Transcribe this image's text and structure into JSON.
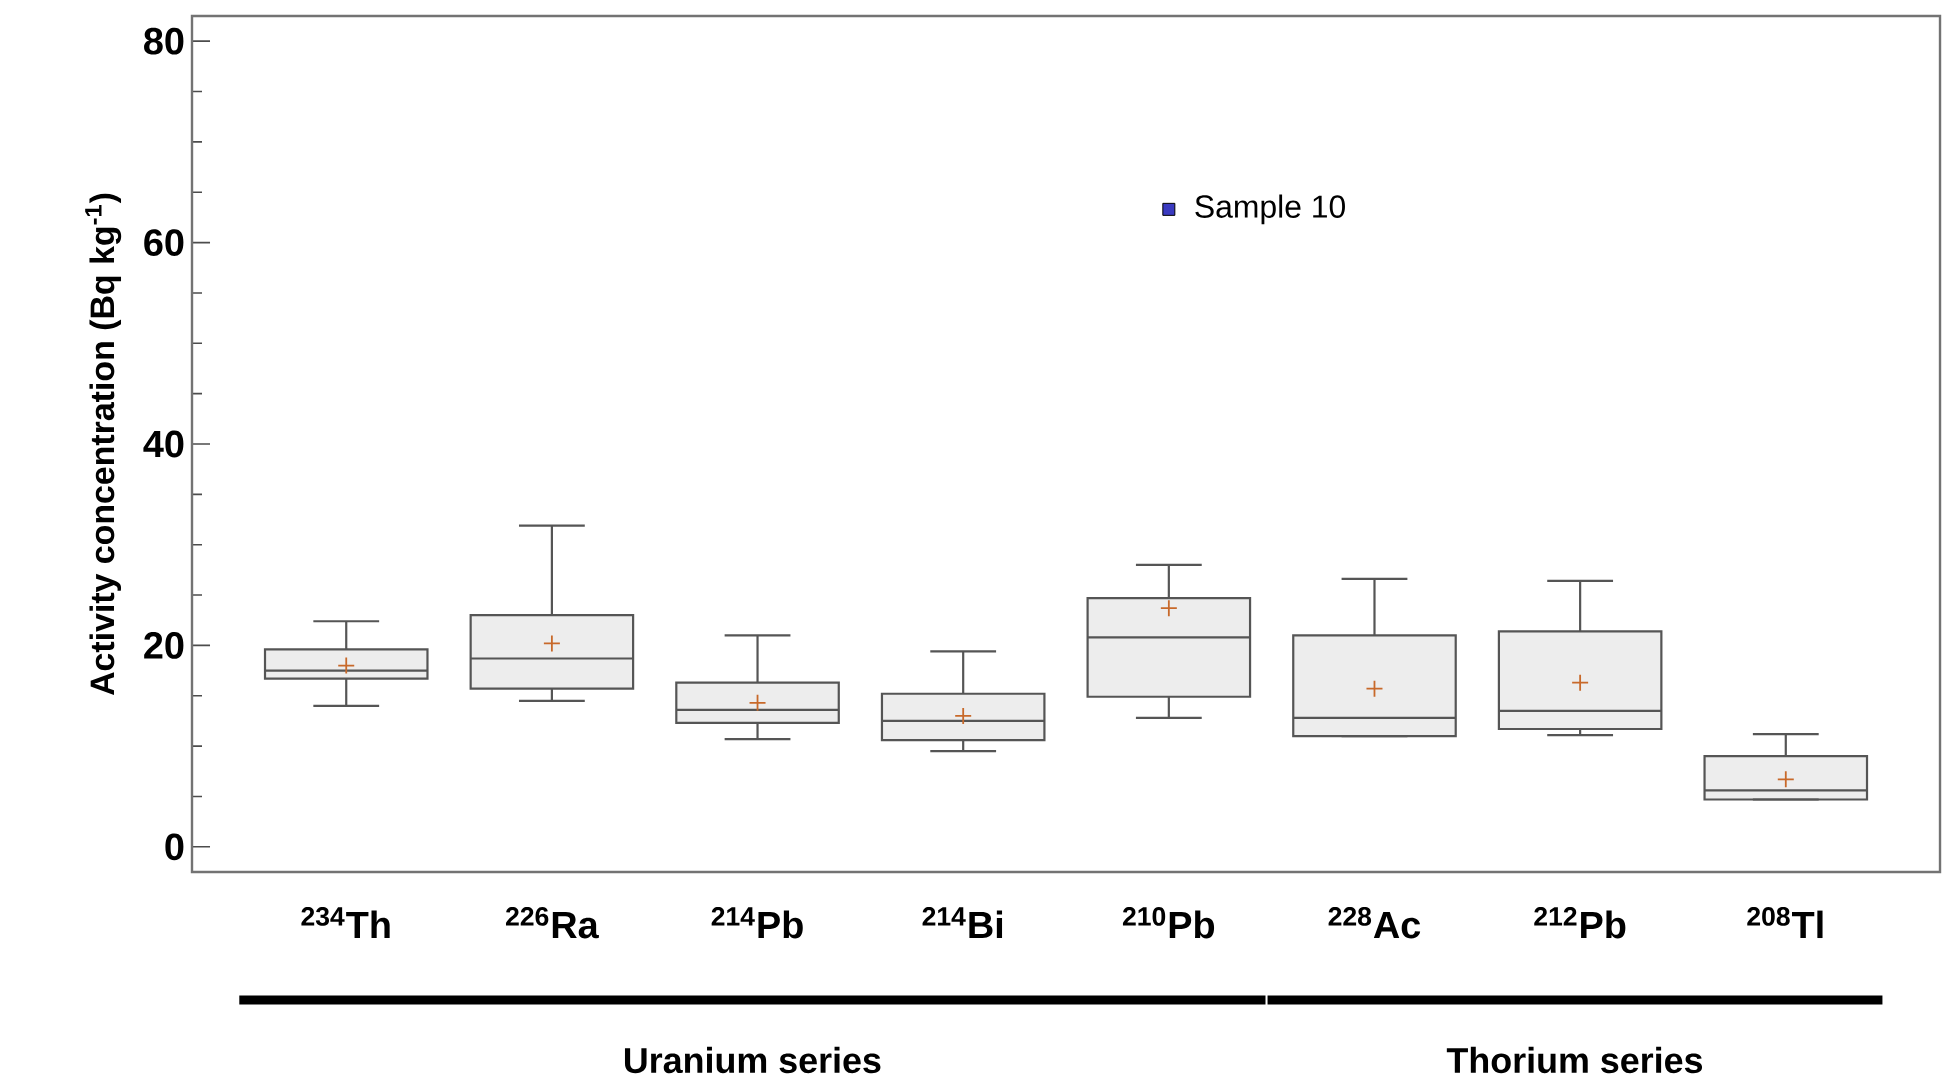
{
  "chart_data": {
    "type": "box",
    "ylabel": "Activity concentration (Bq kg$^{-1}$)",
    "categories": [
      "$^{234}$Th",
      "$^{226}$Ra",
      "$^{214}$Pb",
      "$^{214}$Bi",
      "$^{210}$Pb",
      "$^{228}$Ac",
      "$^{212}$Pb",
      "$^{208}$Tl"
    ],
    "color": "#555555",
    "boxes": [
      {
        "low": 14.0,
        "q1": 16.7,
        "median": 17.5,
        "q3": 19.6,
        "high": 22.4,
        "mean": 18.0
      },
      {
        "low": 14.5,
        "q1": 15.7,
        "median": 18.7,
        "q3": 23.0,
        "high": 31.9,
        "mean": 20.2
      },
      {
        "low": 10.7,
        "q1": 12.3,
        "median": 13.6,
        "q3": 16.3,
        "high": 21.0,
        "mean": 14.3
      },
      {
        "low": 9.5,
        "q1": 10.6,
        "median": 12.5,
        "q3": 15.2,
        "high": 19.4,
        "mean": 13.0
      },
      {
        "low": 12.8,
        "q1": 14.9,
        "median": 20.8,
        "q3": 24.7,
        "high": 28.0,
        "mean": 23.7,
        "outliers": [
          63.3
        ]
      },
      {
        "low": 11.0,
        "q1": 11.0,
        "median": 12.8,
        "q3": 21.0,
        "high": 26.6,
        "mean": 15.7
      },
      {
        "low": 11.1,
        "q1": 11.7,
        "median": 13.5,
        "q3": 21.4,
        "high": 26.4,
        "mean": 16.3
      },
      {
        "low": 4.7,
        "q1": 4.7,
        "median": 5.6,
        "q3": 9.0,
        "high": 11.2,
        "mean": 6.7
      }
    ],
    "ylim": [
      -2.5,
      82.5
    ],
    "yticks": [
      0,
      20,
      40,
      60,
      80
    ],
    "annotations": [
      "Sample 10",
      "Uranium series",
      "Thorium series"
    ]
  }
}
